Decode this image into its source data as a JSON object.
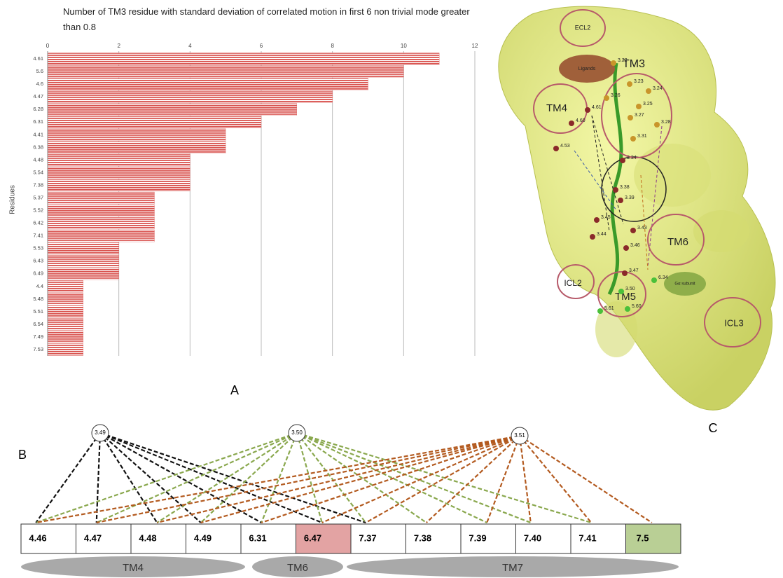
{
  "chart_data": {
    "type": "bar",
    "orientation": "horizontal",
    "title": "Number of TM3 residue  with standard deviation  of  correlated motion in first 6 non trivial mode greater than 0.8",
    "y_label": "Residues",
    "categories": [
      "4.61",
      "5.6",
      "4.6",
      "4.47",
      "6.28",
      "6.31",
      "4.41",
      "6.38",
      "4.48",
      "5.54",
      "7.38",
      "5.37",
      "5.52",
      "6.42",
      "7.41",
      "5.53",
      "6.43",
      "6.49",
      "4.4",
      "5.48",
      "5.51",
      "6.54",
      "7.49",
      "7.53"
    ],
    "values": [
      11,
      10,
      9,
      8,
      7,
      6,
      5,
      5,
      4,
      4,
      4,
      3,
      3,
      3,
      3,
      2,
      2,
      2,
      1,
      1,
      1,
      1,
      1,
      1
    ],
    "color": "#d9534f",
    "xlim": [
      0,
      12
    ],
    "xticks": [
      0,
      2,
      4,
      6,
      8,
      10,
      12
    ],
    "grid": true
  },
  "panel_labels": {
    "a": "A",
    "b": "B",
    "c": "C"
  },
  "diagram": {
    "sources": [
      "3.49",
      "3.50",
      "3.51"
    ],
    "boxes": [
      "4.46",
      "4.47",
      "4.48",
      "4.49",
      "6.31",
      "6.47",
      "7.37",
      "7.38",
      "7.39",
      "7.40",
      "7.41",
      "7.5"
    ],
    "helices": [
      "TM4",
      "TM6",
      "TM7"
    ]
  },
  "structure": {
    "regions": [
      "ECL2",
      "Ligands",
      "TM3",
      "TM4",
      "TM6",
      "ICL2",
      "TM5",
      "ICL3",
      "Gα subunit"
    ],
    "residues": [
      "3.22",
      "3.23",
      "3.24",
      "3.25",
      "3.26",
      "3.27",
      "3.28",
      "3.31",
      "4.61",
      "4.60",
      "4.53",
      "3.34",
      "3.38",
      "3.39",
      "3.43",
      "3.44",
      "3.45",
      "3.46",
      "3.47",
      "3.50",
      "5.60",
      "5.61",
      "6.34"
    ]
  }
}
